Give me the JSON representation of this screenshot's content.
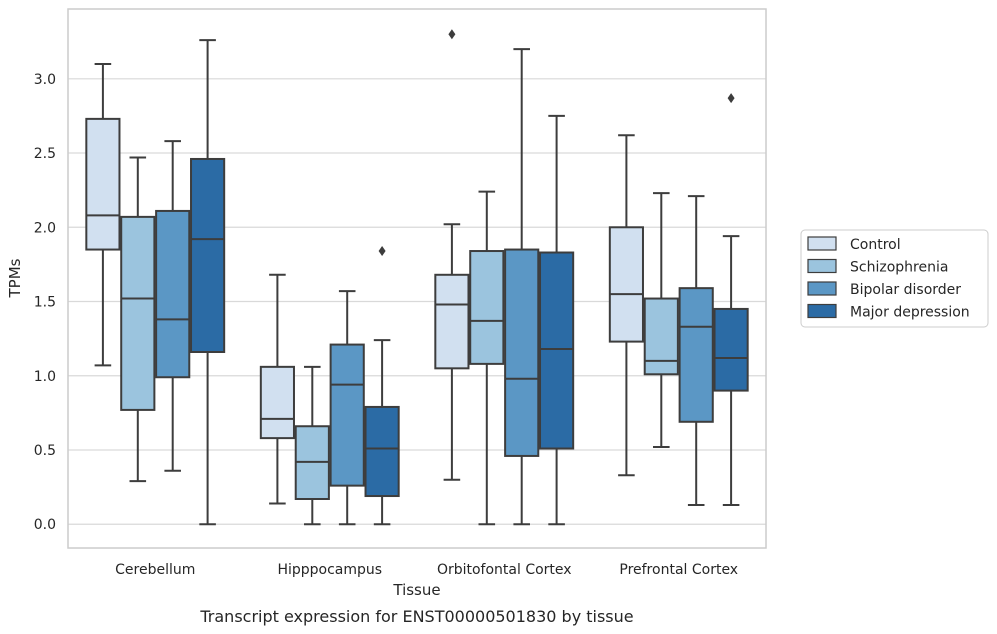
{
  "chart_data": {
    "type": "box",
    "xlabel": "Tissue",
    "ylabel": "TPMs",
    "caption": "Transcript expression for ENST00000501830 by tissue",
    "ylim": [
      -0.16,
      3.47
    ],
    "yticks": [
      "0.0",
      "0.5",
      "1.0",
      "1.5",
      "2.0",
      "2.5",
      "3.0"
    ],
    "grid": "horizontal",
    "legend_position": "right",
    "categories": [
      "Cerebellum",
      "Hipppocampus",
      "Orbitofontal Cortex",
      "Prefrontal Cortex"
    ],
    "series": [
      {
        "name": "Control",
        "color": "#d1e0f0",
        "boxes": [
          {
            "whislo": 1.07,
            "q1": 1.85,
            "med": 2.08,
            "q3": 2.73,
            "whishi": 3.1,
            "fliers": []
          },
          {
            "whislo": 0.14,
            "q1": 0.58,
            "med": 0.71,
            "q3": 1.06,
            "whishi": 1.68,
            "fliers": []
          },
          {
            "whislo": 0.3,
            "q1": 1.05,
            "med": 1.48,
            "q3": 1.68,
            "whishi": 2.02,
            "fliers": [
              3.3
            ]
          },
          {
            "whislo": 0.33,
            "q1": 1.23,
            "med": 1.55,
            "q3": 2.0,
            "whishi": 2.62,
            "fliers": []
          }
        ]
      },
      {
        "name": "Schizophrenia",
        "color": "#9bc4de",
        "boxes": [
          {
            "whislo": 0.29,
            "q1": 0.77,
            "med": 1.52,
            "q3": 2.07,
            "whishi": 2.47,
            "fliers": []
          },
          {
            "whislo": 0.0,
            "q1": 0.17,
            "med": 0.42,
            "q3": 0.66,
            "whishi": 1.06,
            "fliers": []
          },
          {
            "whislo": 0.0,
            "q1": 1.08,
            "med": 1.37,
            "q3": 1.84,
            "whishi": 2.24,
            "fliers": []
          },
          {
            "whislo": 0.52,
            "q1": 1.01,
            "med": 1.1,
            "q3": 1.52,
            "whishi": 2.23,
            "fliers": []
          }
        ]
      },
      {
        "name": "Bipolar disorder",
        "color": "#5b97c5",
        "boxes": [
          {
            "whislo": 0.36,
            "q1": 0.99,
            "med": 1.38,
            "q3": 2.11,
            "whishi": 2.58,
            "fliers": []
          },
          {
            "whislo": 0.0,
            "q1": 0.26,
            "med": 0.94,
            "q3": 1.21,
            "whishi": 1.57,
            "fliers": []
          },
          {
            "whislo": 0.0,
            "q1": 0.46,
            "med": 0.98,
            "q3": 1.85,
            "whishi": 3.2,
            "fliers": []
          },
          {
            "whislo": 0.13,
            "q1": 0.69,
            "med": 1.33,
            "q3": 1.59,
            "whishi": 2.21,
            "fliers": []
          }
        ]
      },
      {
        "name": "Major depression",
        "color": "#2b6ba5",
        "boxes": [
          {
            "whislo": 0.0,
            "q1": 1.16,
            "med": 1.92,
            "q3": 2.46,
            "whishi": 3.26,
            "fliers": []
          },
          {
            "whislo": 0.0,
            "q1": 0.19,
            "med": 0.51,
            "q3": 0.79,
            "whishi": 1.24,
            "fliers": [
              1.84
            ]
          },
          {
            "whislo": 0.0,
            "q1": 0.51,
            "med": 1.18,
            "q3": 1.83,
            "whishi": 2.75,
            "fliers": []
          },
          {
            "whislo": 0.13,
            "q1": 0.9,
            "med": 1.12,
            "q3": 1.45,
            "whishi": 1.94,
            "fliers": [
              2.87
            ]
          }
        ]
      }
    ]
  }
}
